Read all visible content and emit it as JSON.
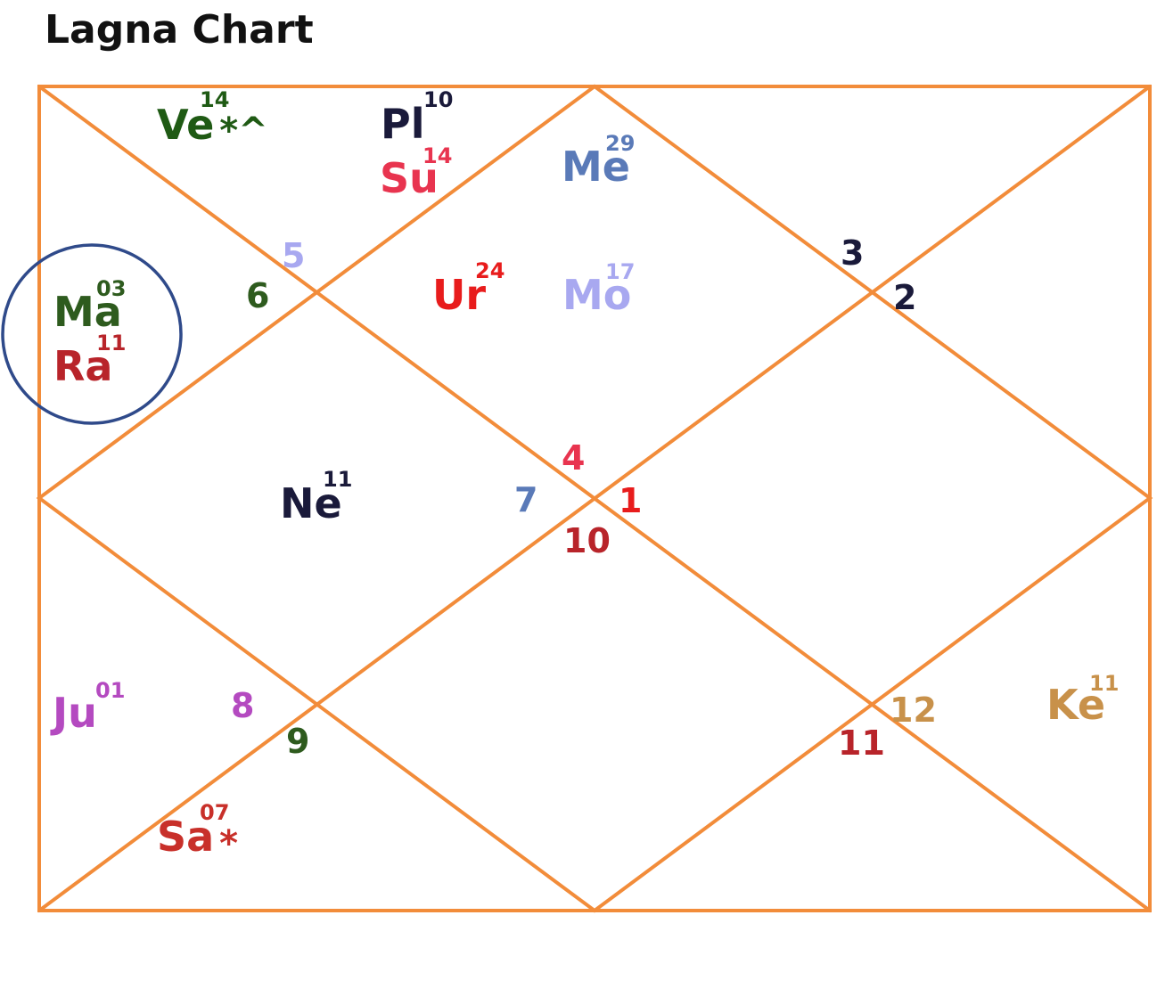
{
  "title": "Lagna Chart",
  "colors": {
    "frame": "#f28c3a",
    "highlight_circle": "#2f4a8a"
  },
  "house_numbers": [
    {
      "id": "h5",
      "text": "5",
      "color": "#a8a8f0"
    },
    {
      "id": "h6",
      "text": "6",
      "color": "#2e5b1e"
    },
    {
      "id": "h3",
      "text": "3",
      "color": "#1a1a3a"
    },
    {
      "id": "h2",
      "text": "2",
      "color": "#1a1a3a"
    },
    {
      "id": "h4",
      "text": "4",
      "color": "#e8344f"
    },
    {
      "id": "h7",
      "text": "7",
      "color": "#5a7ab8"
    },
    {
      "id": "h1",
      "text": "1",
      "color": "#e81c1c"
    },
    {
      "id": "h10",
      "text": "10",
      "color": "#b8242a"
    },
    {
      "id": "h8",
      "text": "8",
      "color": "#b44ac0"
    },
    {
      "id": "h9",
      "text": "9",
      "color": "#2e5b1e"
    },
    {
      "id": "h12",
      "text": "12",
      "color": "#c8914a"
    },
    {
      "id": "h11",
      "text": "11",
      "color": "#b8242a"
    }
  ],
  "planets": [
    {
      "id": "ve",
      "abbr": "Ve",
      "degree": "14",
      "suffix": "*^",
      "color": "#1f5a14"
    },
    {
      "id": "pl",
      "abbr": "Pl",
      "degree": "10",
      "suffix": "",
      "color": "#1a1a3a"
    },
    {
      "id": "su",
      "abbr": "Su",
      "degree": "14",
      "suffix": "",
      "color": "#e8344f"
    },
    {
      "id": "me",
      "abbr": "Me",
      "degree": "29",
      "suffix": "",
      "color": "#5a7ab8"
    },
    {
      "id": "ur",
      "abbr": "Ur",
      "degree": "24",
      "suffix": "",
      "color": "#e81c1c"
    },
    {
      "id": "mo",
      "abbr": "Mo",
      "degree": "17",
      "suffix": "",
      "color": "#a8a8f0"
    },
    {
      "id": "ma",
      "abbr": "Ma",
      "degree": "03",
      "suffix": "",
      "color": "#2e5b1e"
    },
    {
      "id": "ra",
      "abbr": "Ra",
      "degree": "11",
      "suffix": "",
      "color": "#b8242a"
    },
    {
      "id": "ne",
      "abbr": "Ne",
      "degree": "11",
      "suffix": "",
      "color": "#1a1a3a"
    },
    {
      "id": "ju",
      "abbr": "Ju",
      "degree": "01",
      "suffix": "",
      "color": "#b44ac0"
    },
    {
      "id": "sa",
      "abbr": "Sa",
      "degree": "07",
      "suffix": "*",
      "color": "#c8302a"
    },
    {
      "id": "ke",
      "abbr": "Ke",
      "degree": "11",
      "suffix": "",
      "color": "#c8914a"
    }
  ]
}
